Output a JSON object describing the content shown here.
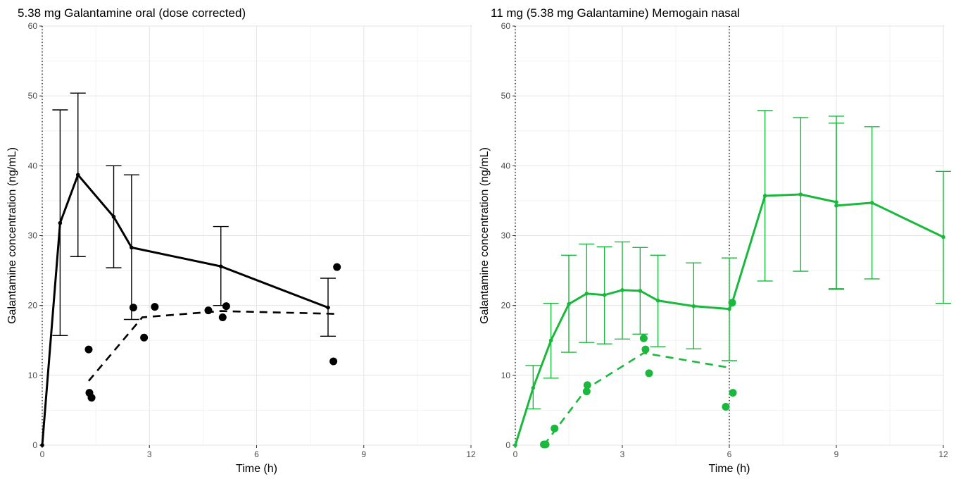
{
  "chart_data": [
    {
      "type": "line",
      "title": "5.38 mg Galantamine oral (dose corrected)",
      "xlabel": "Time (h)",
      "ylabel": "Galantamine concentration (ng/mL)",
      "xlim": [
        0,
        12
      ],
      "ylim": [
        0,
        60
      ],
      "x_ticks": [
        0,
        3,
        6,
        9,
        12
      ],
      "y_ticks": [
        0,
        10,
        20,
        30,
        40,
        50,
        60
      ],
      "grid": true,
      "color": "#000000",
      "vlines": [
        0
      ],
      "mean_series": {
        "x": [
          0,
          0.5,
          1,
          2,
          2.5,
          5,
          8
        ],
        "y": [
          0,
          31.8,
          38.7,
          32.7,
          28.3,
          25.6,
          19.7
        ],
        "err_low": [
          null,
          15.7,
          27.0,
          25.4,
          18.0,
          20.0,
          15.6
        ],
        "err_high": [
          null,
          48.0,
          50.4,
          40.0,
          38.7,
          31.3,
          23.9
        ]
      },
      "dashed_series": {
        "x": [
          1.3,
          2.8,
          5,
          8.2
        ],
        "y": [
          9.2,
          18.3,
          19.2,
          18.8
        ]
      },
      "scatter_points": {
        "x": [
          1.3,
          1.32,
          1.38,
          2.55,
          2.85,
          3.15,
          4.65,
          5.05,
          5.15,
          8.15,
          8.25
        ],
        "y": [
          13.7,
          7.5,
          6.8,
          19.7,
          15.4,
          19.8,
          19.3,
          18.3,
          19.9,
          12.0,
          25.5
        ]
      }
    },
    {
      "type": "line",
      "title": "11 mg (5.38 mg Galantamine) Memogain nasal",
      "xlabel": "Time (h)",
      "ylabel": "Galantamine concentration (ng/mL)",
      "xlim": [
        0,
        12
      ],
      "ylim": [
        0,
        60
      ],
      "x_ticks": [
        0,
        3,
        6,
        9,
        12
      ],
      "y_ticks": [
        0,
        10,
        20,
        30,
        40,
        50,
        60
      ],
      "grid": true,
      "color": "#1ab83c",
      "vlines": [
        0,
        6
      ],
      "mean_series": {
        "x": [
          0,
          0.5,
          1,
          1.5,
          2,
          2.5,
          3,
          3.5,
          4,
          5,
          6,
          6.08,
          7,
          8,
          9,
          9,
          10,
          12
        ],
        "y": [
          0,
          8.2,
          15.0,
          20.2,
          21.7,
          21.5,
          22.2,
          22.1,
          20.7,
          19.9,
          19.5,
          20.4,
          35.7,
          35.9,
          34.8,
          34.3,
          34.7,
          29.8
        ],
        "err_low": [
          null,
          5.2,
          9.6,
          13.3,
          14.7,
          14.5,
          15.2,
          15.9,
          14.1,
          13.8,
          12.1,
          null,
          23.5,
          24.9,
          22.4,
          22.3,
          23.8,
          20.3
        ],
        "err_high": [
          null,
          11.4,
          20.3,
          27.2,
          28.8,
          28.4,
          29.1,
          28.3,
          27.2,
          26.1,
          26.8,
          null,
          47.9,
          46.9,
          47.1,
          46.1,
          45.6,
          39.2
        ]
      },
      "dashed_series": {
        "x": [
          0.8,
          2,
          3.6,
          6
        ],
        "y": [
          0,
          8.1,
          13.2,
          11.1
        ]
      },
      "scatter_points": {
        "x": [
          0.8,
          0.85,
          1.1,
          2.0,
          2.02,
          3.6,
          3.65,
          3.75,
          5.9,
          6.1,
          6.08
        ],
        "y": [
          0.1,
          0.1,
          2.4,
          7.7,
          8.6,
          15.3,
          13.7,
          10.3,
          5.5,
          7.5,
          20.4
        ]
      }
    }
  ]
}
